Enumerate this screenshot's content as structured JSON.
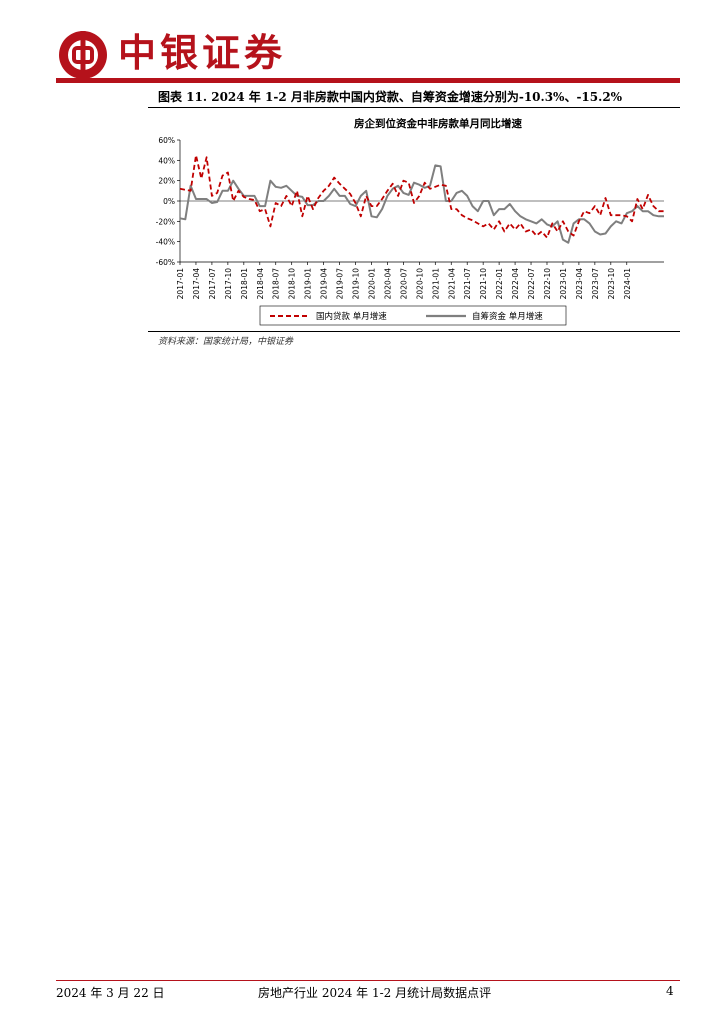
{
  "header": {
    "brand": "中银证券"
  },
  "figure": {
    "caption": "图表 11. 2024 年 1-2 月非房款中国内贷款、自筹资金增速分别为-10.3%、-15.2%",
    "source": "资料来源：国家统计局，中银证券"
  },
  "footer": {
    "date": "2024 年 3 月 22 日",
    "title": "房地产行业 2024 年 1-2 月统计局数据点评",
    "page": "4"
  },
  "chart_data": {
    "type": "line",
    "title": "房企到位资金中非房款单月同比增速",
    "ylim": [
      -60,
      60
    ],
    "yticks": [
      "60%",
      "40%",
      "20%",
      "0%",
      "-20%",
      "-40%",
      "-60%"
    ],
    "yticks_values": [
      60,
      40,
      20,
      0,
      -20,
      -40,
      -60
    ],
    "xticks": [
      "2017-01",
      "2017-04",
      "2017-07",
      "2017-10",
      "2018-01",
      "2018-04",
      "2018-07",
      "2018-10",
      "2019-01",
      "2019-04",
      "2019-07",
      "2019-10",
      "2020-01",
      "2020-04",
      "2020-07",
      "2020-10",
      "2021-01",
      "2021-04",
      "2021-07",
      "2021-10",
      "2022-01",
      "2022-04",
      "2022-07",
      "2022-10",
      "2023-01",
      "2023-04",
      "2023-07",
      "2023-10",
      "2024-01"
    ],
    "x_start": "2017-01",
    "legend_position": "bottom",
    "colors": {
      "series1": "#c00000",
      "series2": "#7f7f7f"
    },
    "series": [
      {
        "name": "国内贷款 单月增速",
        "style": "dashed",
        "values": [
          12,
          11,
          10,
          45,
          22,
          43,
          5,
          8,
          25,
          28,
          0,
          10,
          4,
          2,
          1,
          -10,
          -8,
          -25,
          -2,
          -5,
          5,
          -5,
          10,
          -15,
          5,
          -8,
          3,
          10,
          15,
          23,
          17,
          12,
          7,
          -2,
          -15,
          5,
          -5,
          -5,
          2,
          10,
          17,
          5,
          20,
          18,
          -2,
          5,
          18,
          12,
          14,
          16,
          15,
          -8,
          -8,
          -14,
          -17,
          -19,
          -22,
          -25,
          -22,
          -28,
          -20,
          -30,
          -22,
          -28,
          -22,
          -30,
          -28,
          -34,
          -30,
          -36,
          -22,
          -30,
          -20,
          -30,
          -34,
          -20,
          -10,
          -12,
          -5,
          -14,
          3,
          -14,
          -14,
          -14,
          -15,
          -20,
          2,
          -8,
          6,
          -5,
          -10,
          -10
        ]
      },
      {
        "name": "自筹资金 单月增速",
        "style": "solid",
        "values": [
          -17,
          -18,
          15,
          2,
          2,
          2,
          -2,
          -1,
          10,
          10,
          20,
          12,
          5,
          5,
          5,
          -5,
          -5,
          20,
          14,
          13,
          15,
          10,
          5,
          4,
          -4,
          -4,
          0,
          0,
          5,
          12,
          5,
          5,
          -3,
          -5,
          5,
          10,
          -15,
          -16,
          -8,
          5,
          12,
          15,
          8,
          6,
          18,
          16,
          13,
          15,
          35,
          34,
          0,
          0,
          8,
          10,
          5,
          -5,
          -10,
          0,
          0,
          -14,
          -8,
          -8,
          -3,
          -10,
          -15,
          -18,
          -20,
          -22,
          -18,
          -23,
          -25,
          -20,
          -38,
          -41,
          -22,
          -18,
          -18,
          -22,
          -30,
          -33,
          -32,
          -25,
          -20,
          -22,
          -12,
          -10,
          -5,
          -10,
          -10,
          -14,
          -15,
          -15
        ]
      }
    ]
  }
}
